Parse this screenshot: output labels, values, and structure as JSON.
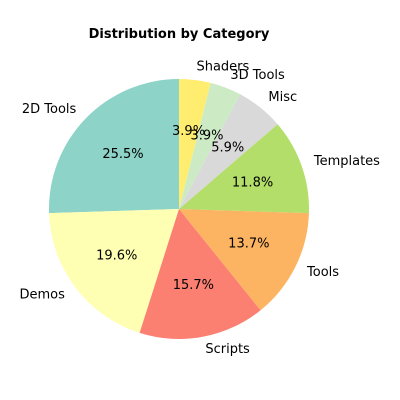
{
  "chart_data": {
    "type": "pie",
    "title": "Distribution by Category",
    "start_angle_deg": 90,
    "direction": "counterclockwise",
    "slices": [
      {
        "label": "2D Tools",
        "value": 25.5,
        "pct_label": "25.5%",
        "color": "#8dd3c7"
      },
      {
        "label": "Demos",
        "value": 19.6,
        "pct_label": "19.6%",
        "color": "#ffffb3"
      },
      {
        "label": "Scripts",
        "value": 15.7,
        "pct_label": "15.7%",
        "color": "#fb8072"
      },
      {
        "label": "Tools",
        "value": 13.7,
        "pct_label": "13.7%",
        "color": "#fdb462"
      },
      {
        "label": "Templates",
        "value": 11.8,
        "pct_label": "11.8%",
        "color": "#b3de69"
      },
      {
        "label": "Misc",
        "value": 5.9,
        "pct_label": "5.9%",
        "color": "#d9d9d9"
      },
      {
        "label": "3D Tools",
        "value": 3.9,
        "pct_label": "3.9%",
        "color": "#ccebc5"
      },
      {
        "label": "Shaders",
        "value": 3.9,
        "pct_label": "3.9%",
        "color": "#ffed6f"
      }
    ]
  }
}
